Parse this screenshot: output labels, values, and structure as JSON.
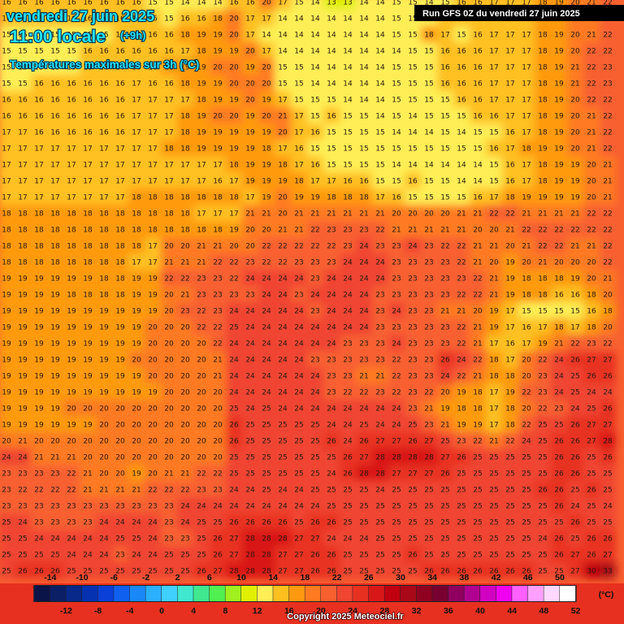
{
  "header": {
    "date": "vendredi 27 juin 2025",
    "time": "11:00 locale",
    "offset": "(+9h)",
    "subtitle": "Températures maximales sur 3h (°C)",
    "run": "Run GFS 0Z du vendredi 27 juin 2025"
  },
  "grid": [
    [
      16,
      16,
      16,
      16,
      16,
      16,
      16,
      16,
      16,
      15,
      15,
      14,
      14,
      14,
      16,
      16,
      20,
      17,
      15,
      14,
      13,
      13,
      14,
      14,
      15,
      15,
      14,
      15,
      16,
      16,
      17,
      17,
      17,
      18,
      19,
      20,
      21,
      22
    ],
    [
      16,
      16,
      16,
      16,
      16,
      16,
      16,
      16,
      16,
      16,
      15,
      16,
      16,
      18,
      20,
      17,
      17,
      14,
      14,
      14,
      14,
      14,
      14,
      14,
      15,
      15,
      15,
      16,
      17,
      16,
      16,
      17,
      17,
      18,
      19,
      20,
      21,
      22
    ],
    [
      15,
      15,
      15,
      15,
      15,
      15,
      15,
      16,
      16,
      16,
      16,
      18,
      19,
      19,
      20,
      17,
      14,
      14,
      14,
      14,
      14,
      14,
      14,
      14,
      15,
      15,
      18,
      17,
      15,
      16,
      17,
      17,
      17,
      18,
      19,
      20,
      21,
      22
    ],
    [
      15,
      15,
      15,
      15,
      15,
      16,
      16,
      16,
      16,
      16,
      16,
      17,
      18,
      19,
      19,
      20,
      17,
      14,
      14,
      14,
      14,
      14,
      14,
      14,
      14,
      15,
      15,
      16,
      16,
      16,
      17,
      17,
      17,
      18,
      19,
      20,
      22,
      22
    ],
    [
      15,
      15,
      15,
      15,
      15,
      16,
      16,
      16,
      16,
      16,
      18,
      19,
      19,
      20,
      20,
      19,
      20,
      15,
      15,
      14,
      14,
      14,
      14,
      14,
      15,
      15,
      15,
      16,
      16,
      16,
      17,
      17,
      17,
      18,
      19,
      21,
      22,
      23
    ],
    [
      15,
      15,
      16,
      16,
      16,
      16,
      16,
      16,
      17,
      16,
      16,
      18,
      19,
      19,
      20,
      20,
      20,
      15,
      15,
      14,
      14,
      14,
      14,
      14,
      15,
      15,
      15,
      16,
      16,
      16,
      17,
      17,
      17,
      18,
      19,
      21,
      22,
      23
    ],
    [
      16,
      16,
      16,
      16,
      16,
      16,
      16,
      16,
      17,
      17,
      17,
      17,
      18,
      19,
      19,
      20,
      19,
      17,
      15,
      15,
      15,
      14,
      14,
      14,
      15,
      15,
      15,
      15,
      16,
      16,
      17,
      17,
      17,
      18,
      19,
      20,
      22,
      22
    ],
    [
      16,
      16,
      16,
      16,
      16,
      16,
      16,
      16,
      17,
      17,
      17,
      18,
      19,
      20,
      20,
      19,
      20,
      21,
      17,
      15,
      16,
      15,
      15,
      14,
      15,
      14,
      15,
      15,
      15,
      16,
      16,
      17,
      17,
      18,
      19,
      20,
      21,
      22
    ],
    [
      17,
      17,
      16,
      16,
      16,
      16,
      16,
      16,
      17,
      17,
      17,
      18,
      19,
      19,
      19,
      19,
      19,
      20,
      17,
      16,
      15,
      15,
      15,
      15,
      14,
      14,
      14,
      15,
      14,
      15,
      15,
      16,
      17,
      18,
      19,
      20,
      21,
      22
    ],
    [
      17,
      17,
      17,
      17,
      17,
      17,
      17,
      17,
      17,
      17,
      18,
      18,
      19,
      19,
      19,
      19,
      18,
      17,
      16,
      15,
      15,
      15,
      15,
      15,
      15,
      15,
      15,
      15,
      15,
      15,
      16,
      17,
      18,
      19,
      19,
      20,
      21,
      22
    ],
    [
      17,
      17,
      17,
      17,
      17,
      17,
      17,
      17,
      17,
      17,
      17,
      17,
      17,
      17,
      18,
      19,
      19,
      18,
      17,
      16,
      15,
      15,
      15,
      15,
      14,
      14,
      14,
      14,
      14,
      14,
      15,
      16,
      17,
      18,
      19,
      19,
      20,
      21
    ],
    [
      17,
      17,
      17,
      17,
      17,
      17,
      17,
      17,
      17,
      17,
      17,
      17,
      17,
      16,
      17,
      19,
      19,
      19,
      18,
      17,
      17,
      16,
      16,
      15,
      15,
      16,
      15,
      15,
      14,
      14,
      15,
      16,
      17,
      18,
      19,
      19,
      20,
      21
    ],
    [
      17,
      17,
      17,
      17,
      17,
      17,
      17,
      17,
      18,
      18,
      18,
      18,
      18,
      18,
      18,
      17,
      19,
      20,
      19,
      19,
      18,
      18,
      18,
      17,
      16,
      15,
      15,
      15,
      15,
      16,
      17,
      18,
      19,
      19,
      19,
      19,
      20,
      21
    ],
    [
      18,
      18,
      18,
      18,
      18,
      18,
      18,
      18,
      18,
      18,
      18,
      18,
      17,
      17,
      17,
      21,
      21,
      20,
      21,
      21,
      21,
      21,
      21,
      21,
      20,
      20,
      20,
      20,
      21,
      21,
      22,
      22,
      21,
      21,
      21,
      21,
      22,
      22
    ],
    [
      18,
      18,
      18,
      18,
      18,
      18,
      18,
      18,
      18,
      18,
      18,
      18,
      18,
      18,
      19,
      20,
      20,
      21,
      21,
      22,
      23,
      23,
      23,
      22,
      21,
      21,
      21,
      21,
      21,
      20,
      20,
      21,
      22,
      22,
      22,
      22,
      22,
      22
    ],
    [
      18,
      18,
      18,
      18,
      18,
      18,
      18,
      18,
      18,
      17,
      20,
      20,
      21,
      21,
      20,
      20,
      22,
      22,
      22,
      22,
      22,
      23,
      24,
      23,
      23,
      24,
      23,
      22,
      22,
      21,
      21,
      20,
      21,
      22,
      22,
      21,
      21,
      22
    ],
    [
      18,
      18,
      18,
      18,
      18,
      18,
      18,
      18,
      17,
      17,
      21,
      21,
      21,
      22,
      22,
      23,
      22,
      22,
      23,
      23,
      23,
      24,
      24,
      24,
      23,
      23,
      23,
      23,
      22,
      21,
      20,
      19,
      20,
      21,
      20,
      20,
      20,
      22
    ],
    [
      19,
      19,
      19,
      19,
      19,
      19,
      18,
      18,
      19,
      19,
      22,
      22,
      23,
      23,
      22,
      24,
      24,
      24,
      24,
      23,
      24,
      24,
      24,
      24,
      23,
      23,
      23,
      23,
      23,
      22,
      21,
      19,
      18,
      18,
      18,
      19,
      20,
      21
    ],
    [
      19,
      19,
      19,
      19,
      18,
      18,
      18,
      18,
      19,
      19,
      20,
      21,
      23,
      23,
      23,
      23,
      24,
      24,
      23,
      24,
      24,
      24,
      24,
      23,
      23,
      23,
      23,
      23,
      22,
      22,
      21,
      19,
      18,
      18,
      16,
      16,
      18,
      20
    ],
    [
      19,
      19,
      19,
      19,
      19,
      19,
      19,
      19,
      19,
      19,
      20,
      23,
      22,
      23,
      24,
      24,
      24,
      24,
      24,
      23,
      24,
      24,
      24,
      23,
      24,
      23,
      23,
      21,
      21,
      20,
      19,
      17,
      15,
      15,
      15,
      15,
      16,
      18
    ],
    [
      19,
      19,
      19,
      19,
      19,
      19,
      19,
      19,
      19,
      20,
      20,
      20,
      22,
      22,
      25,
      24,
      24,
      24,
      24,
      24,
      24,
      24,
      24,
      23,
      23,
      23,
      23,
      23,
      22,
      21,
      19,
      17,
      16,
      17,
      18,
      17,
      18,
      20
    ],
    [
      19,
      19,
      19,
      19,
      19,
      19,
      19,
      19,
      19,
      20,
      20,
      20,
      20,
      22,
      24,
      24,
      24,
      24,
      24,
      24,
      24,
      23,
      23,
      23,
      24,
      23,
      23,
      23,
      22,
      21,
      17,
      16,
      17,
      19,
      21,
      22,
      23,
      22
    ],
    [
      19,
      19,
      19,
      19,
      19,
      19,
      19,
      19,
      20,
      20,
      20,
      20,
      20,
      21,
      24,
      24,
      24,
      24,
      24,
      23,
      23,
      23,
      23,
      23,
      22,
      23,
      23,
      26,
      24,
      22,
      18,
      17,
      20,
      22,
      24,
      26,
      27,
      27
    ],
    [
      19,
      19,
      19,
      19,
      19,
      19,
      19,
      19,
      19,
      20,
      20,
      20,
      20,
      21,
      24,
      24,
      24,
      24,
      24,
      24,
      23,
      23,
      21,
      21,
      22,
      23,
      23,
      24,
      22,
      21,
      18,
      18,
      20,
      23,
      24,
      25,
      26,
      26
    ],
    [
      19,
      19,
      19,
      19,
      19,
      19,
      19,
      19,
      19,
      19,
      20,
      20,
      20,
      20,
      24,
      24,
      24,
      24,
      24,
      24,
      23,
      22,
      22,
      23,
      22,
      23,
      22,
      20,
      19,
      18,
      17,
      19,
      22,
      23,
      24,
      25,
      24,
      24
    ],
    [
      19,
      19,
      19,
      19,
      20,
      20,
      20,
      20,
      20,
      20,
      20,
      20,
      20,
      20,
      25,
      24,
      25,
      24,
      24,
      24,
      24,
      24,
      24,
      24,
      24,
      23,
      21,
      19,
      18,
      18,
      17,
      18,
      20,
      22,
      23,
      24,
      25,
      26
    ],
    [
      19,
      19,
      19,
      19,
      19,
      19,
      20,
      20,
      20,
      20,
      20,
      20,
      20,
      20,
      26,
      25,
      25,
      25,
      25,
      25,
      24,
      24,
      25,
      24,
      24,
      25,
      23,
      21,
      19,
      19,
      17,
      18,
      22,
      25,
      25,
      26,
      27,
      27
    ],
    [
      20,
      21,
      20,
      20,
      20,
      20,
      20,
      20,
      20,
      20,
      20,
      20,
      20,
      20,
      26,
      25,
      25,
      25,
      25,
      25,
      26,
      24,
      26,
      27,
      27,
      26,
      27,
      25,
      23,
      22,
      21,
      22,
      24,
      25,
      26,
      26,
      27,
      28
    ],
    [
      24,
      24,
      21,
      21,
      21,
      20,
      20,
      20,
      20,
      20,
      20,
      20,
      20,
      20,
      25,
      25,
      25,
      25,
      25,
      25,
      25,
      26,
      27,
      28,
      28,
      28,
      28,
      27,
      26,
      25,
      25,
      25,
      25,
      25,
      26,
      26,
      25,
      26
    ],
    [
      23,
      23,
      23,
      23,
      22,
      21,
      20,
      20,
      19,
      20,
      21,
      21,
      22,
      22,
      25,
      25,
      25,
      25,
      25,
      25,
      24,
      26,
      28,
      28,
      27,
      27,
      27,
      26,
      25,
      25,
      25,
      25,
      25,
      25,
      26,
      26,
      25,
      25
    ],
    [
      23,
      22,
      22,
      22,
      22,
      21,
      21,
      21,
      21,
      22,
      22,
      22,
      23,
      23,
      24,
      24,
      25,
      24,
      24,
      25,
      25,
      25,
      25,
      24,
      25,
      25,
      25,
      25,
      25,
      25,
      25,
      25,
      25,
      26,
      26,
      25,
      26,
      25
    ],
    [
      23,
      23,
      23,
      23,
      23,
      23,
      23,
      23,
      23,
      23,
      23,
      24,
      24,
      24,
      24,
      24,
      24,
      24,
      24,
      24,
      25,
      25,
      25,
      25,
      25,
      25,
      25,
      25,
      25,
      25,
      25,
      25,
      25,
      25,
      26,
      24,
      25,
      24
    ],
    [
      25,
      24,
      23,
      23,
      23,
      23,
      24,
      24,
      24,
      24,
      23,
      24,
      25,
      25,
      26,
      26,
      26,
      26,
      25,
      26,
      26,
      25,
      25,
      25,
      25,
      25,
      25,
      25,
      25,
      25,
      25,
      25,
      25,
      25,
      25,
      26,
      25,
      25
    ],
    [
      25,
      25,
      24,
      24,
      24,
      24,
      24,
      25,
      25,
      24,
      23,
      23,
      25,
      26,
      27,
      28,
      28,
      28,
      27,
      27,
      24,
      24,
      24,
      25,
      25,
      25,
      25,
      25,
      25,
      25,
      25,
      25,
      25,
      24,
      26,
      25,
      26,
      26
    ],
    [
      25,
      25,
      25,
      25,
      24,
      24,
      24,
      23,
      24,
      24,
      25,
      25,
      25,
      26,
      27,
      28,
      28,
      27,
      27,
      26,
      26,
      25,
      25,
      25,
      25,
      26,
      25,
      25,
      25,
      25,
      25,
      25,
      25,
      25,
      26,
      27,
      26,
      27
    ],
    [
      25,
      26,
      26,
      26,
      25,
      25,
      25,
      25,
      25,
      25,
      25,
      25,
      26,
      27,
      28,
      28,
      28,
      27,
      27,
      26,
      26,
      25,
      25,
      25,
      25,
      25,
      26,
      26,
      26,
      26,
      26,
      26,
      26,
      25,
      25,
      27,
      30,
      33
    ]
  ],
  "colorbar": {
    "ticks": [
      -14,
      -12,
      -10,
      -8,
      -6,
      -4,
      -2,
      0,
      2,
      4,
      6,
      8,
      10,
      12,
      14,
      16,
      18,
      20,
      22,
      24,
      26,
      28,
      30,
      32,
      34,
      36,
      38,
      40,
      42,
      44,
      46,
      48,
      50,
      52
    ],
    "colors": [
      "#0b1448",
      "#0a1f66",
      "#08288a",
      "#0532b0",
      "#0a3fd8",
      "#1060f0",
      "#1a88f8",
      "#2ab0ff",
      "#40d0ff",
      "#40e8d0",
      "#40e890",
      "#50f050",
      "#a0f020",
      "#e0f000",
      "#ffee55",
      "#ffc020",
      "#ff9a10",
      "#ff7a20",
      "#f86030",
      "#f04530",
      "#e83020",
      "#d81818",
      "#c00010",
      "#a80818",
      "#900020",
      "#780030",
      "#900060",
      "#b00090",
      "#d000c0",
      "#f000f0",
      "#ff60ff",
      "#ffa0ff",
      "#ffd8ff",
      "#ffffff"
    ],
    "unit": "(°C)"
  },
  "footer": {
    "copyright": "Copyright 2025 Meteociel.fr"
  }
}
